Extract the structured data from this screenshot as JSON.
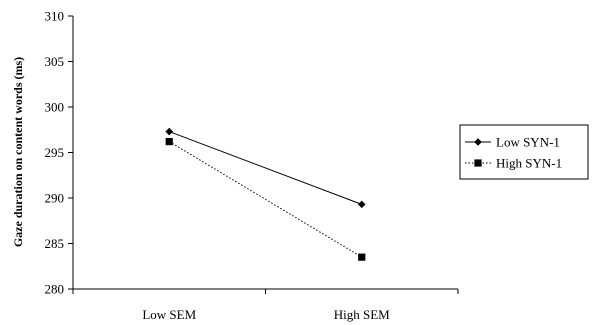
{
  "chart_data": {
    "type": "line",
    "title": "",
    "xlabel": "",
    "ylabel": "Gaze duration on content words (ms)",
    "categories": [
      "Low SEM",
      "High SEM"
    ],
    "ylim": [
      280,
      310
    ],
    "yticks": [
      280,
      285,
      290,
      295,
      300,
      305,
      310
    ],
    "grid": false,
    "legend": "right",
    "series": [
      {
        "name": "Low SYN-1",
        "values": [
          297.3,
          289.3
        ],
        "marker": "diamond",
        "line_style": "solid",
        "color": "#000000"
      },
      {
        "name": "High SYN-1",
        "values": [
          296.2,
          283.5
        ],
        "marker": "square",
        "line_style": "dotted",
        "color": "#000000"
      }
    ]
  }
}
